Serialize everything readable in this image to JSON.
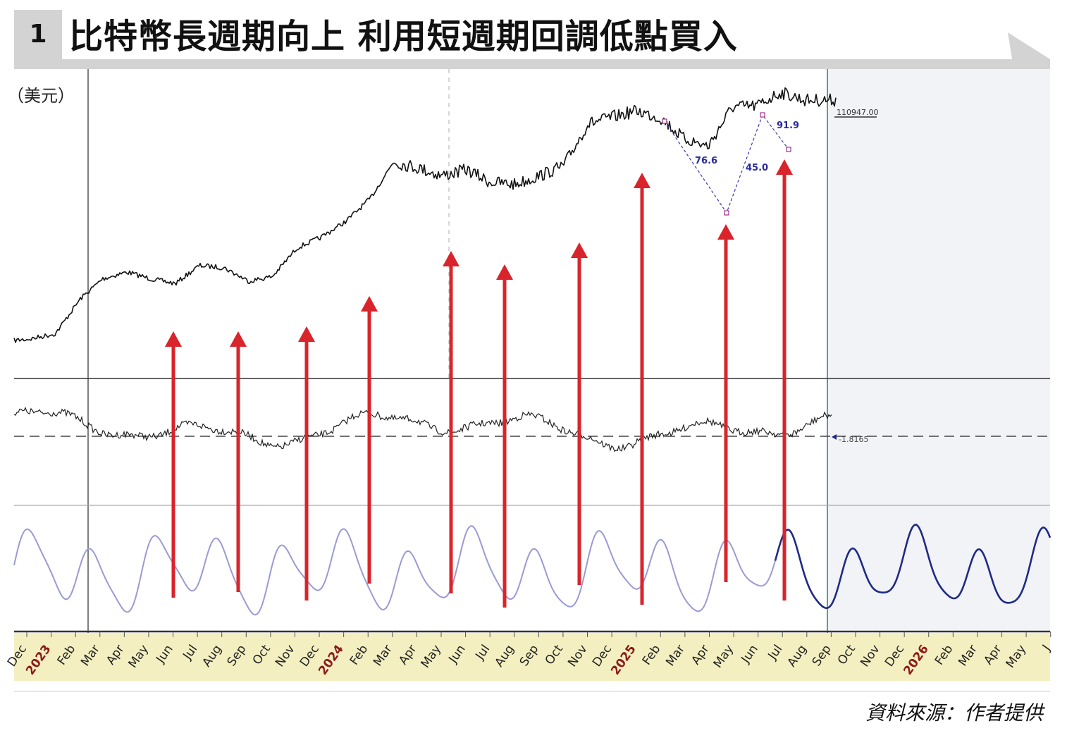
{
  "header": {
    "number": "1",
    "title": "比特幣長週期向上 利用短週期回調低點買入"
  },
  "unit_label": "（美元）",
  "source": "資料來源：作者提供",
  "colors": {
    "accent_gray": "#d3d3d3",
    "arrow": "#d9242b",
    "cycle_past": "#9a9ad4",
    "cycle_projection": "#1f2a85",
    "axis_band": "#f4efc0",
    "year_label": "#8b1a1a",
    "forecast_bg": "#f1f3f6",
    "divider": "#5a9e96"
  },
  "chart_data": {
    "type": "line",
    "title": "比特幣長週期向上 利用短週期回調低點買入",
    "ylabel": "（美元）",
    "x_ticks": [
      "Dec",
      "2023",
      "Feb",
      "Mar",
      "Apr",
      "May",
      "Jun",
      "Jul",
      "Aug",
      "Sep",
      "Oct",
      "Nov",
      "Dec",
      "2024",
      "Feb",
      "Mar",
      "Apr",
      "May",
      "Jun",
      "Jul",
      "Aug",
      "Sep",
      "Oct",
      "Nov",
      "Dec",
      "2025",
      "Feb",
      "Mar",
      "Apr",
      "May",
      "Jun",
      "Jul",
      "Aug",
      "Sep",
      "Oct",
      "Nov",
      "Dec",
      "2026",
      "Feb",
      "Mar",
      "Apr",
      "May",
      "J"
    ],
    "year_ticks": [
      "2023",
      "2024",
      "2025",
      "2026"
    ],
    "price_series": {
      "name": "BTC",
      "x": [
        "2022-11",
        "2022-12",
        "2023-01",
        "2023-02",
        "2023-03",
        "2023-04",
        "2023-05",
        "2023-06",
        "2023-07",
        "2023-08",
        "2023-09",
        "2023-10",
        "2023-11",
        "2023-12",
        "2024-01",
        "2024-02",
        "2024-03",
        "2024-04",
        "2024-05",
        "2024-06",
        "2024-07",
        "2024-08",
        "2024-09",
        "2024-10",
        "2024-11",
        "2024-12",
        "2025-01",
        "2025-02",
        "2025-03",
        "2025-04",
        "2025-05",
        "2025-06",
        "2025-07",
        "2025-08"
      ],
      "y": [
        16500,
        16800,
        17500,
        23000,
        27000,
        28500,
        27000,
        26000,
        30000,
        29500,
        26500,
        27500,
        34500,
        37500,
        42500,
        51000,
        68000,
        65000,
        61000,
        64000,
        58000,
        57000,
        61000,
        66000,
        92000,
        97000,
        102000,
        96000,
        82000,
        77000,
        105000,
        106000,
        118000,
        110947
      ]
    },
    "last_price_label": "110947.00",
    "fib_labels": [
      "76.6",
      "45.0",
      "91.9"
    ],
    "oscillator": {
      "last_value_label": "-1.8165",
      "zero_line": 0
    },
    "cycle_projection_start": "2025-08",
    "buy_arrows": [
      "2023-05",
      "2023-08",
      "2023-10",
      "2024-01",
      "2024-05",
      "2024-07",
      "2024-10",
      "2025-01",
      "2025-04",
      "2025-06"
    ]
  }
}
